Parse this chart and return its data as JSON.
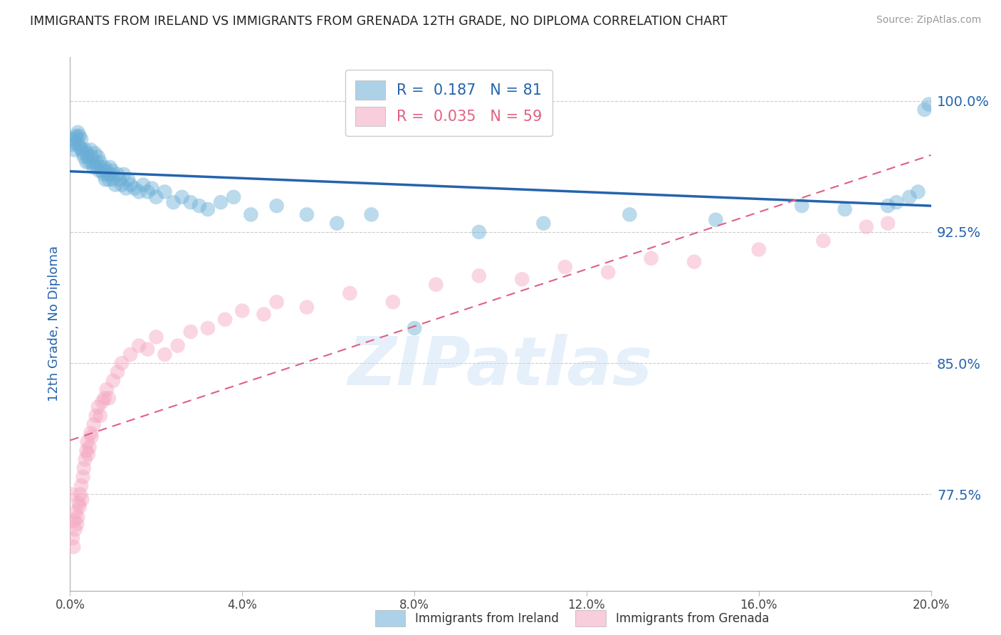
{
  "title": "IMMIGRANTS FROM IRELAND VS IMMIGRANTS FROM GRENADA 12TH GRADE, NO DIPLOMA CORRELATION CHART",
  "source": "Source: ZipAtlas.com",
  "ylabel": "12th Grade, No Diploma",
  "xlim": [
    0.0,
    20.0
  ],
  "ylim": [
    72.0,
    102.5
  ],
  "yticks": [
    77.5,
    85.0,
    92.5,
    100.0
  ],
  "ytick_labels": [
    "77.5%",
    "85.0%",
    "92.5%",
    "100.0%"
  ],
  "xticks": [
    0.0,
    4.0,
    8.0,
    12.0,
    16.0,
    20.0
  ],
  "ireland_color": "#6aaed6",
  "grenada_color": "#f4a6c0",
  "ireland_line_color": "#2563ae",
  "grenada_line_color": "#e06080",
  "background_color": "#FFFFFF",
  "watermark": "ZIPatlas",
  "ireland_R": 0.187,
  "ireland_N": 81,
  "grenada_R": 0.035,
  "grenada_N": 59,
  "ireland_x": [
    0.05,
    0.08,
    0.1,
    0.12,
    0.14,
    0.16,
    0.18,
    0.2,
    0.22,
    0.24,
    0.26,
    0.28,
    0.3,
    0.32,
    0.35,
    0.38,
    0.4,
    0.42,
    0.45,
    0.48,
    0.5,
    0.52,
    0.55,
    0.58,
    0.6,
    0.62,
    0.65,
    0.68,
    0.7,
    0.72,
    0.75,
    0.78,
    0.8,
    0.82,
    0.85,
    0.88,
    0.9,
    0.93,
    0.95,
    0.98,
    1.0,
    1.05,
    1.1,
    1.15,
    1.2,
    1.25,
    1.3,
    1.35,
    1.4,
    1.5,
    1.6,
    1.7,
    1.8,
    1.9,
    2.0,
    2.2,
    2.4,
    2.6,
    2.8,
    3.0,
    3.2,
    3.5,
    3.8,
    4.2,
    4.8,
    5.5,
    6.2,
    7.0,
    8.0,
    9.5,
    11.0,
    13.0,
    15.0,
    17.0,
    18.0,
    19.0,
    19.2,
    19.5,
    19.7,
    19.85,
    19.95
  ],
  "ireland_y": [
    97.5,
    97.8,
    97.2,
    97.6,
    98.0,
    97.9,
    98.2,
    97.5,
    98.0,
    97.3,
    97.8,
    97.2,
    97.0,
    96.8,
    97.2,
    96.5,
    97.0,
    96.8,
    96.5,
    97.2,
    96.8,
    96.5,
    96.2,
    97.0,
    96.5,
    96.2,
    96.8,
    96.0,
    96.5,
    96.2,
    96.0,
    95.8,
    96.2,
    95.5,
    96.0,
    95.8,
    95.5,
    96.2,
    95.8,
    96.0,
    95.5,
    95.2,
    95.8,
    95.5,
    95.2,
    95.8,
    95.0,
    95.5,
    95.2,
    95.0,
    94.8,
    95.2,
    94.8,
    95.0,
    94.5,
    94.8,
    94.2,
    94.5,
    94.2,
    94.0,
    93.8,
    94.2,
    94.5,
    93.5,
    94.0,
    93.5,
    93.0,
    93.5,
    87.0,
    92.5,
    93.0,
    93.5,
    93.2,
    94.0,
    93.8,
    94.0,
    94.2,
    94.5,
    94.8,
    99.5,
    99.8
  ],
  "grenada_x": [
    0.04,
    0.06,
    0.08,
    0.1,
    0.12,
    0.14,
    0.16,
    0.18,
    0.2,
    0.22,
    0.24,
    0.26,
    0.28,
    0.3,
    0.32,
    0.35,
    0.38,
    0.4,
    0.42,
    0.45,
    0.48,
    0.5,
    0.55,
    0.6,
    0.65,
    0.7,
    0.75,
    0.8,
    0.85,
    0.9,
    1.0,
    1.1,
    1.2,
    1.4,
    1.6,
    1.8,
    2.0,
    2.2,
    2.5,
    2.8,
    3.2,
    3.6,
    4.0,
    4.5,
    4.8,
    5.5,
    6.5,
    7.5,
    8.5,
    9.5,
    10.5,
    11.5,
    12.5,
    13.5,
    14.5,
    16.0,
    17.5,
    18.5,
    19.0
  ],
  "grenada_y": [
    77.5,
    75.0,
    74.5,
    76.0,
    75.5,
    76.5,
    75.8,
    76.2,
    77.0,
    76.8,
    77.5,
    78.0,
    77.2,
    78.5,
    79.0,
    79.5,
    80.0,
    80.5,
    79.8,
    80.2,
    81.0,
    80.8,
    81.5,
    82.0,
    82.5,
    82.0,
    82.8,
    83.0,
    83.5,
    83.0,
    84.0,
    84.5,
    85.0,
    85.5,
    86.0,
    85.8,
    86.5,
    85.5,
    86.0,
    86.8,
    87.0,
    87.5,
    88.0,
    87.8,
    88.5,
    88.2,
    89.0,
    88.5,
    89.5,
    90.0,
    89.8,
    90.5,
    90.2,
    91.0,
    90.8,
    91.5,
    92.0,
    92.8,
    93.0
  ]
}
